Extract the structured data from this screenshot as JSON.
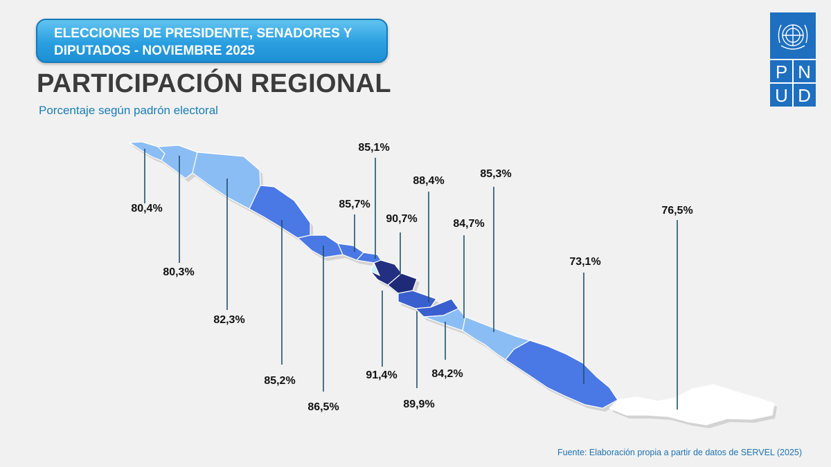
{
  "header": {
    "banner_line1": "ELECCIONES DE PRESIDENTE, SENADORES Y",
    "banner_line2": "DIPUTADOS - NOVIEMBRE 2025",
    "title": "PARTICIPACIÓN REGIONAL",
    "subtitle": "Porcentaje según padrón electoral"
  },
  "logo": {
    "letters": [
      "P",
      "N",
      "U",
      "D"
    ],
    "emblem": "un-emblem-icon",
    "color": "#1e6fc0"
  },
  "source": "Fuente: Elaboración propia a partir de datos de SERVEL (2025)",
  "regions": [
    {
      "value": "80,4%",
      "color": "#8bbdf5"
    },
    {
      "value": "80,3%",
      "color": "#8bbdf5"
    },
    {
      "value": "82,3%",
      "color": "#8bbdf5"
    },
    {
      "value": "85,2%",
      "color": "#4a78e4"
    },
    {
      "value": "86,5%",
      "color": "#4a78e4"
    },
    {
      "value": "85,7%",
      "color": "#4a78e4"
    },
    {
      "value": "85,1%",
      "color": "#4a78e4"
    },
    {
      "value": "90,7%",
      "color": "#232f80"
    },
    {
      "value": "91,4%",
      "color": "#1e2a78"
    },
    {
      "value": "88,4%",
      "color": "#3a60cf"
    },
    {
      "value": "89,9%",
      "color": "#3a60cf"
    },
    {
      "value": "84,7%",
      "color": "#8bbdf5"
    },
    {
      "value": "84,2%",
      "color": "#8bbdf5"
    },
    {
      "value": "85,3%",
      "color": "#4a78e4"
    },
    {
      "value": "73,1%",
      "color": "#ffffff"
    },
    {
      "value": "76,5%",
      "color": "#c9effb"
    }
  ]
}
